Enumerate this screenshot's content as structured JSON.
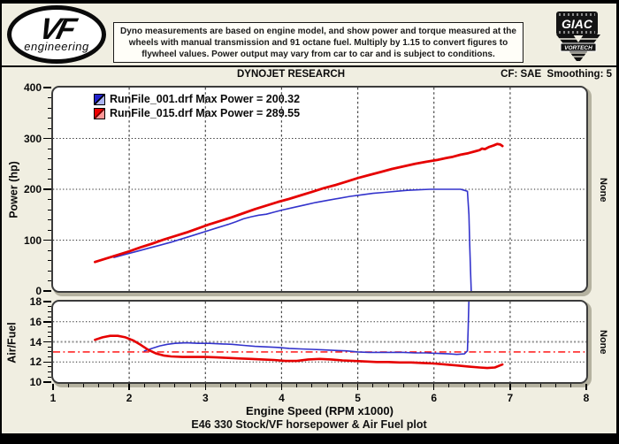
{
  "header": {
    "vf_logo": {
      "mark": "VF",
      "sub": "engineering"
    },
    "disclaimer_lines": [
      "Dyno measurements are based on engine model, and show power and torque measured at the",
      "wheels with manual transmission and 91 octane fuel. Multiply by 1.15 to convert figures to",
      "flywheel values. Power output may vary from car to car and is subject to conditions."
    ],
    "giac_label": "GIAC",
    "vortech_label": "VORTECH"
  },
  "subheader": {
    "title": "DYNOJET RESEARCH",
    "right": "CF: SAE  Smoothing: 5"
  },
  "legend": [
    {
      "label": "RunFile_001.drf Max Power = 200.32",
      "color": "#2222cc",
      "color_light": "#aab4f2",
      "divider": "#000000"
    },
    {
      "label": "RunFile_015.drf Max Power = 289.55",
      "color": "#ee0000",
      "color_light": "#ff9898",
      "divider": "#700000"
    }
  ],
  "power_axis": {
    "title": "Power (hp)",
    "ticks": [
      400,
      300,
      200,
      100,
      0
    ],
    "minor_step": 20,
    "gridlines": [
      100,
      200,
      300
    ],
    "right_label": "None"
  },
  "af_axis": {
    "title": "Air/Fuel",
    "ticks": [
      18,
      16,
      14,
      12,
      10
    ],
    "minor_step": 0.5,
    "gridlines": [
      12,
      16
    ],
    "right_label": "None"
  },
  "x_axis": {
    "title": "Engine Speed (RPM x1000)",
    "ticks": [
      1,
      2,
      3,
      4,
      5,
      6,
      7,
      8
    ],
    "minor_step": 0.2,
    "gridlines": [
      2,
      3,
      4,
      5,
      6,
      7
    ]
  },
  "caption": "E46 330 Stock/VF horsepower & Air Fuel plot",
  "colors": {
    "background": "#f0eee1",
    "plot_bg": "#ffffff",
    "grid": "#2a2a2a",
    "vgrid": "#4a4a4a",
    "blue_run": "#3333cc",
    "red_run": "#e60000",
    "af_target_line": "#ff0000",
    "af_gray_line": "#909090"
  },
  "chart_data": [
    {
      "type": "line",
      "title": "Power vs Engine Speed",
      "xlabel": "Engine Speed (RPM x1000)",
      "ylabel": "Power (hp)",
      "xlim": [
        1,
        8
      ],
      "ylim": [
        0,
        400
      ],
      "grid": true,
      "legend_position": "top-left",
      "series": [
        {
          "name": "RunFile_001.drf",
          "max_power": 200.32,
          "color": "#3333cc",
          "width": 1.6,
          "points": [
            [
              1.8,
              66
            ],
            [
              1.95,
              72
            ],
            [
              2.1,
              78
            ],
            [
              2.25,
              84
            ],
            [
              2.4,
              90
            ],
            [
              2.55,
              96
            ],
            [
              2.7,
              103
            ],
            [
              2.85,
              110
            ],
            [
              3.0,
              117
            ],
            [
              3.15,
              124
            ],
            [
              3.3,
              131
            ],
            [
              3.4,
              136
            ],
            [
              3.5,
              142
            ],
            [
              3.6,
              146
            ],
            [
              3.7,
              149
            ],
            [
              3.8,
              151
            ],
            [
              3.9,
              155
            ],
            [
              4.0,
              159
            ],
            [
              4.15,
              164
            ],
            [
              4.3,
              169
            ],
            [
              4.45,
              174
            ],
            [
              4.6,
              178
            ],
            [
              4.75,
              182
            ],
            [
              4.9,
              186
            ],
            [
              5.05,
              189
            ],
            [
              5.2,
              192
            ],
            [
              5.35,
              194
            ],
            [
              5.5,
              196
            ],
            [
              5.65,
              198
            ],
            [
              5.8,
              199
            ],
            [
              5.95,
              200
            ],
            [
              6.1,
              200
            ],
            [
              6.25,
              200
            ],
            [
              6.35,
              200
            ],
            [
              6.4,
              198
            ],
            [
              6.44,
              196
            ],
            [
              6.46,
              150
            ],
            [
              6.47,
              90
            ],
            [
              6.48,
              40
            ],
            [
              6.49,
              0
            ]
          ]
        },
        {
          "name": "RunFile_015.drf",
          "max_power": 289.55,
          "color": "#e60000",
          "width": 2.8,
          "points": [
            [
              1.55,
              57
            ],
            [
              1.7,
              64
            ],
            [
              1.85,
              71
            ],
            [
              2.0,
              78
            ],
            [
              2.15,
              86
            ],
            [
              2.3,
              93
            ],
            [
              2.45,
              101
            ],
            [
              2.6,
              108
            ],
            [
              2.75,
              115
            ],
            [
              2.9,
              123
            ],
            [
              3.05,
              131
            ],
            [
              3.2,
              138
            ],
            [
              3.35,
              145
            ],
            [
              3.5,
              153
            ],
            [
              3.65,
              161
            ],
            [
              3.8,
              168
            ],
            [
              3.95,
              175
            ],
            [
              4.1,
              181
            ],
            [
              4.25,
              188
            ],
            [
              4.4,
              195
            ],
            [
              4.55,
              202
            ],
            [
              4.7,
              208
            ],
            [
              4.85,
              215
            ],
            [
              5.0,
              222
            ],
            [
              5.15,
              228
            ],
            [
              5.3,
              234
            ],
            [
              5.45,
              240
            ],
            [
              5.6,
              245
            ],
            [
              5.75,
              250
            ],
            [
              5.9,
              254
            ],
            [
              6.05,
              258
            ],
            [
              6.15,
              261
            ],
            [
              6.25,
              264
            ],
            [
              6.35,
              268
            ],
            [
              6.45,
              271
            ],
            [
              6.55,
              275
            ],
            [
              6.6,
              277
            ],
            [
              6.63,
              280
            ],
            [
              6.67,
              279
            ],
            [
              6.72,
              283
            ],
            [
              6.78,
              286
            ],
            [
              6.83,
              289
            ],
            [
              6.87,
              288
            ],
            [
              6.9,
              285
            ]
          ]
        }
      ]
    },
    {
      "type": "line",
      "title": "Air/Fuel vs Engine Speed",
      "xlabel": "Engine Speed (RPM x1000)",
      "ylabel": "Air/Fuel",
      "xlim": [
        1,
        8
      ],
      "ylim": [
        10,
        18
      ],
      "grid": true,
      "reference_lines": [
        {
          "y": 14,
          "color": "#909090",
          "style": "dotted",
          "width": 2
        },
        {
          "y": 13,
          "color": "#ff0000",
          "style": "dashdot",
          "width": 1.4
        }
      ],
      "series": [
        {
          "name": "RunFile_001.drf",
          "color": "#3333cc",
          "width": 1.6,
          "points": [
            [
              2.2,
              13.1
            ],
            [
              2.3,
              13.35
            ],
            [
              2.4,
              13.6
            ],
            [
              2.5,
              13.75
            ],
            [
              2.6,
              13.85
            ],
            [
              2.75,
              13.9
            ],
            [
              2.9,
              13.85
            ],
            [
              3.05,
              13.85
            ],
            [
              3.2,
              13.8
            ],
            [
              3.35,
              13.75
            ],
            [
              3.5,
              13.65
            ],
            [
              3.65,
              13.55
            ],
            [
              3.8,
              13.5
            ],
            [
              3.95,
              13.45
            ],
            [
              4.1,
              13.35
            ],
            [
              4.25,
              13.3
            ],
            [
              4.4,
              13.25
            ],
            [
              4.55,
              13.2
            ],
            [
              4.7,
              13.15
            ],
            [
              4.85,
              13.1
            ],
            [
              5.0,
              13.0
            ],
            [
              5.15,
              12.95
            ],
            [
              5.3,
              12.95
            ],
            [
              5.45,
              12.95
            ],
            [
              5.6,
              12.95
            ],
            [
              5.75,
              12.9
            ],
            [
              5.9,
              12.9
            ],
            [
              6.05,
              12.85
            ],
            [
              6.2,
              12.8
            ],
            [
              6.3,
              12.75
            ],
            [
              6.4,
              12.8
            ],
            [
              6.44,
              13.1
            ],
            [
              6.45,
              15.5
            ],
            [
              6.46,
              18.3
            ]
          ]
        },
        {
          "name": "RunFile_015.drf",
          "color": "#e60000",
          "width": 2.6,
          "points": [
            [
              1.55,
              14.2
            ],
            [
              1.65,
              14.45
            ],
            [
              1.75,
              14.6
            ],
            [
              1.85,
              14.6
            ],
            [
              1.95,
              14.45
            ],
            [
              2.05,
              14.15
            ],
            [
              2.15,
              13.7
            ],
            [
              2.25,
              13.2
            ],
            [
              2.35,
              12.85
            ],
            [
              2.45,
              12.65
            ],
            [
              2.55,
              12.55
            ],
            [
              2.7,
              12.5
            ],
            [
              2.85,
              12.5
            ],
            [
              3.0,
              12.5
            ],
            [
              3.15,
              12.45
            ],
            [
              3.3,
              12.4
            ],
            [
              3.45,
              12.35
            ],
            [
              3.6,
              12.3
            ],
            [
              3.75,
              12.25
            ],
            [
              3.9,
              12.2
            ],
            [
              4.05,
              12.1
            ],
            [
              4.2,
              12.1
            ],
            [
              4.35,
              12.25
            ],
            [
              4.5,
              12.3
            ],
            [
              4.65,
              12.25
            ],
            [
              4.8,
              12.15
            ],
            [
              4.95,
              12.1
            ],
            [
              5.1,
              12.05
            ],
            [
              5.25,
              12.0
            ],
            [
              5.4,
              12.0
            ],
            [
              5.55,
              11.95
            ],
            [
              5.7,
              11.95
            ],
            [
              5.85,
              11.9
            ],
            [
              6.0,
              11.85
            ],
            [
              6.15,
              11.75
            ],
            [
              6.3,
              11.65
            ],
            [
              6.45,
              11.55
            ],
            [
              6.6,
              11.45
            ],
            [
              6.7,
              11.4
            ],
            [
              6.8,
              11.45
            ],
            [
              6.9,
              11.75
            ]
          ]
        }
      ]
    }
  ]
}
